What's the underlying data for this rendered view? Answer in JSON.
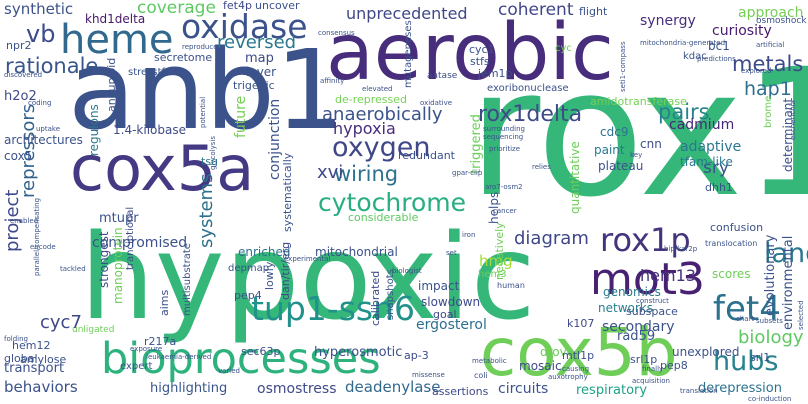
{
  "cloud": {
    "background": "#ffffff",
    "words": [
      {
        "text": "hypoxic",
        "color": "#35b779"
      },
      {
        "text": "rox1",
        "color": "#35b779"
      },
      {
        "text": "anb1",
        "color": "#3b528b"
      },
      {
        "text": "aerobic",
        "color": "#472d7b"
      },
      {
        "text": "cox5a",
        "color": "#443983"
      },
      {
        "text": "cox5b",
        "color": "#6ece58"
      },
      {
        "text": "bioprocesses",
        "color": "#2db27d"
      },
      {
        "text": "mot3",
        "color": "#482173"
      },
      {
        "text": "heme",
        "color": "#31688e"
      },
      {
        "text": "oxidase",
        "color": "#3b528b"
      },
      {
        "text": "tup1-ssn6",
        "color": "#21918c"
      },
      {
        "text": "rox1delta",
        "color": "#3e4a89"
      },
      {
        "text": "fet4",
        "color": "#2c728e"
      },
      {
        "text": "rox1p",
        "color": "#46337e"
      },
      {
        "text": "cytochrome",
        "color": "#28ae80"
      },
      {
        "text": "oxygen",
        "color": "#3f4788"
      },
      {
        "text": "landscape",
        "color": "#2a788e"
      },
      {
        "text": "hubs",
        "color": "#26828e"
      },
      {
        "text": "biology",
        "color": "#5ec962"
      },
      {
        "text": "anaerobically",
        "color": "#3b528b"
      },
      {
        "text": "hypoxia",
        "color": "#472d7b"
      },
      {
        "text": "wiring",
        "color": "#2c728e"
      },
      {
        "text": "pairs",
        "color": "#26828e"
      },
      {
        "text": "metals",
        "color": "#3e4a89"
      },
      {
        "text": "hap1",
        "color": "#2e6e8e"
      },
      {
        "text": "coverage",
        "color": "#5ec962"
      },
      {
        "text": "rationale",
        "color": "#39568c"
      },
      {
        "text": "reversed",
        "color": "#2a788e"
      },
      {
        "text": "vb",
        "color": "#3e4a89"
      },
      {
        "text": "khd1delta",
        "color": "#481769"
      },
      {
        "text": "synthetic",
        "color": "#3b528b"
      },
      {
        "text": "unprecedented",
        "color": "#3f4788"
      },
      {
        "text": "coherent",
        "color": "#404688"
      },
      {
        "text": "synergy",
        "color": "#472d7b"
      },
      {
        "text": "curiosity",
        "color": "#481a6c"
      },
      {
        "text": "approach",
        "color": "#75d054"
      },
      {
        "text": "project",
        "color": "#3e4a89"
      },
      {
        "text": "repressors",
        "color": "#33638d"
      },
      {
        "text": "systems",
        "color": "#2c728e"
      },
      {
        "text": "diagram",
        "color": "#3f4788"
      },
      {
        "text": "hmg",
        "color": "#a5db36"
      },
      {
        "text": "hem13",
        "color": "#46337e"
      },
      {
        "text": "sry",
        "color": "#3b528b"
      },
      {
        "text": "adaptive",
        "color": "#2a788e"
      },
      {
        "text": "cadmium",
        "color": "#482677"
      },
      {
        "text": "cyc7",
        "color": "#3f4788"
      },
      {
        "text": "ergosterol",
        "color": "#2d708e"
      },
      {
        "text": "compromised",
        "color": "#3b528b"
      },
      {
        "text": "enriched",
        "color": "#2d708e"
      },
      {
        "text": "secondary",
        "color": "#3b528b"
      },
      {
        "text": "circuits",
        "color": "#3b528b"
      },
      {
        "text": "respiratory",
        "color": "#1fa188"
      },
      {
        "text": "derepression",
        "color": "#2c728e"
      },
      {
        "text": "behaviors",
        "color": "#3b528b"
      },
      {
        "text": "highlighting",
        "color": "#39568c"
      },
      {
        "text": "osmostress",
        "color": "#3e4a89"
      },
      {
        "text": "deadenylase",
        "color": "#31688e"
      },
      {
        "text": "assertions",
        "color": "#3e4a89"
      },
      {
        "text": "transport",
        "color": "#3b528b"
      },
      {
        "text": "mitochondrial",
        "color": "#3b528b"
      },
      {
        "text": "networks",
        "color": "#287c8e"
      },
      {
        "text": "genomics",
        "color": "#2a788e"
      },
      {
        "text": "hyperosmotic",
        "color": "#3b528b"
      },
      {
        "text": "mosaic",
        "color": "#3e4a89"
      },
      {
        "text": "drove",
        "color": "#6ece58"
      },
      {
        "text": "unexplored",
        "color": "#3b528b"
      },
      {
        "text": "rad59",
        "color": "#3b528b"
      },
      {
        "text": "scores",
        "color": "#6ece58"
      },
      {
        "text": "evolutionary",
        "color": "#3b528b"
      },
      {
        "text": "environmental",
        "color": "#3b528b"
      },
      {
        "text": "determinant",
        "color": "#3b528b"
      },
      {
        "text": "tfam-like",
        "color": "#2a788e"
      },
      {
        "text": "dhh1",
        "color": "#3b528b"
      },
      {
        "text": "cnn",
        "color": "#3b528b"
      },
      {
        "text": "cdc9",
        "color": "#2c728e"
      },
      {
        "text": "paint",
        "color": "#2a788e"
      },
      {
        "text": "plateau",
        "color": "#3b528b"
      },
      {
        "text": "impact",
        "color": "#3b528b"
      },
      {
        "text": "slowdown",
        "color": "#3e4a89"
      },
      {
        "text": "goal",
        "color": "#3e4a89"
      },
      {
        "text": "considerable",
        "color": "#5ec962"
      },
      {
        "text": "redundant",
        "color": "#3b528b"
      },
      {
        "text": "amidotransferase",
        "color": "#75d054"
      },
      {
        "text": "de-repressed",
        "color": "#75d054"
      },
      {
        "text": "exoribonuclease",
        "color": "#3b528b"
      },
      {
        "text": "future",
        "color": "#75d054"
      },
      {
        "text": "1.4-kilobase",
        "color": "#3e4a89"
      },
      {
        "text": "regulons",
        "color": "#2a788e"
      },
      {
        "text": "architectures",
        "color": "#3b528b"
      },
      {
        "text": "h2o2",
        "color": "#3e4a89"
      },
      {
        "text": "cox5",
        "color": "#3b528b"
      },
      {
        "text": "strongest",
        "color": "#3e4a89"
      },
      {
        "text": "manoprotein",
        "color": "#6ece58"
      },
      {
        "text": "tsg",
        "color": "#2a788e"
      },
      {
        "text": "mtupr",
        "color": "#3b528b"
      },
      {
        "text": "xvi",
        "color": "#3e4a89"
      },
      {
        "text": "conjunction",
        "color": "#3b528b"
      },
      {
        "text": "map",
        "color": "#3e4a89"
      },
      {
        "text": "layer",
        "color": "#3b528b"
      },
      {
        "text": "trigenic",
        "color": "#3b528b"
      },
      {
        "text": "aneuploid",
        "color": "#3b528b"
      },
      {
        "text": "stresstfam",
        "color": "#3b528b"
      },
      {
        "text": "secretome",
        "color": "#3b528b"
      },
      {
        "text": "npr2",
        "color": "#3b528b"
      },
      {
        "text": "fet4p",
        "color": "#3e4a89"
      },
      {
        "text": "uncover",
        "color": "#3b528b"
      },
      {
        "text": "flight",
        "color": "#3b528b"
      },
      {
        "text": "mitochondria-generated",
        "color": "#3b528b"
      },
      {
        "text": "osmoshock",
        "color": "#3b528b"
      },
      {
        "text": "cyc1",
        "color": "#3b528b"
      },
      {
        "text": "stfs",
        "color": "#3b528b"
      },
      {
        "text": "jem1p",
        "color": "#3b528b"
      },
      {
        "text": "aatase",
        "color": "#3e4a89"
      },
      {
        "text": "cyc",
        "color": "#6ece58"
      },
      {
        "text": "kdac",
        "color": "#3b528b"
      },
      {
        "text": "bc1",
        "color": "#3b528b"
      },
      {
        "text": "mutageneses",
        "color": "#3b528b"
      },
      {
        "text": "triggered",
        "color": "#6ece58"
      },
      {
        "text": "helps",
        "color": "#3b528b"
      },
      {
        "text": "quantitative",
        "color": "#6ece58"
      },
      {
        "text": "confusion",
        "color": "#3b528b"
      },
      {
        "text": "translocation",
        "color": "#3b528b"
      },
      {
        "text": "lowly",
        "color": "#3b528b"
      },
      {
        "text": "dan/tir/erg",
        "color": "#3e4a89"
      },
      {
        "text": "depmap",
        "color": "#3b528b"
      },
      {
        "text": "pep4",
        "color": "#3b528b"
      },
      {
        "text": "calibrated",
        "color": "#3e4a89"
      },
      {
        "text": "snapshots",
        "color": "#3b528b"
      },
      {
        "text": "hem3",
        "color": "#6ece58"
      },
      {
        "text": "human",
        "color": "#3b528b"
      },
      {
        "text": "k107",
        "color": "#3e4a89"
      },
      {
        "text": "subspace",
        "color": "#3b528b"
      },
      {
        "text": "mtl1p",
        "color": "#3b528b"
      },
      {
        "text": "srl1p",
        "color": "#3b528b"
      },
      {
        "text": "srl1",
        "color": "#3b528b"
      },
      {
        "text": "pep8",
        "color": "#3b528b"
      },
      {
        "text": "ap-3",
        "color": "#3e4a89"
      },
      {
        "text": "sec63p",
        "color": "#3b528b"
      },
      {
        "text": "r217a",
        "color": "#3b528b"
      },
      {
        "text": "hem12",
        "color": "#3b528b"
      },
      {
        "text": "global",
        "color": "#3b528b"
      },
      {
        "text": "amylose",
        "color": "#3b528b"
      },
      {
        "text": "tranciptional",
        "color": "#3e4a89"
      },
      {
        "text": "aims",
        "color": "#3b528b"
      },
      {
        "text": "multisubstrate",
        "color": "#3b528b"
      },
      {
        "text": "leukaemia-derived",
        "color": "#3b528b"
      },
      {
        "text": "expert",
        "color": "#3b528b"
      },
      {
        "text": "unligated",
        "color": "#6ece58"
      },
      {
        "text": "negatively",
        "color": "#6ece58"
      },
      {
        "text": "systematically",
        "color": "#3b528b"
      },
      {
        "text": "metabolic",
        "color": "#3b528b"
      },
      {
        "text": "coli",
        "color": "#3b528b"
      },
      {
        "text": "translation",
        "color": "#3b528b"
      },
      {
        "text": "co-induction",
        "color": "#3b528b"
      },
      {
        "text": "missense",
        "color": "#3b528b"
      },
      {
        "text": "varied",
        "color": "#3b528b"
      },
      {
        "text": "folding",
        "color": "#3b528b"
      },
      {
        "text": "tackled",
        "color": "#3b528b"
      },
      {
        "text": "enabled",
        "color": "#3b528b"
      },
      {
        "text": "encode",
        "color": "#3b528b"
      },
      {
        "text": "parallel/compensating",
        "color": "#3b528b"
      },
      {
        "text": "uptake",
        "color": "#3b528b"
      },
      {
        "text": "discovered",
        "color": "#3b528b"
      },
      {
        "text": "consensus",
        "color": "#3b528b"
      },
      {
        "text": "affinity",
        "color": "#3b528b"
      },
      {
        "text": "elevated",
        "color": "#3b528b"
      },
      {
        "text": "oxidative",
        "color": "#3b528b"
      },
      {
        "text": "surrounding",
        "color": "#3b528b"
      },
      {
        "text": "sequencing",
        "color": "#3b528b"
      },
      {
        "text": "prioritize",
        "color": "#3b528b"
      },
      {
        "text": "gpar-clip",
        "color": "#3b528b"
      },
      {
        "text": "relies",
        "color": "#3b528b"
      },
      {
        "text": "aro7-osm2",
        "color": "#3b528b"
      },
      {
        "text": "cancer",
        "color": "#3b528b"
      },
      {
        "text": "predictions",
        "color": "#3b528b"
      },
      {
        "text": "explored",
        "color": "#3b528b"
      },
      {
        "text": "brome",
        "color": "#6ece58"
      },
      {
        "text": "escherichia",
        "color": "#3b528b"
      },
      {
        "text": "key",
        "color": "#3b528b"
      },
      {
        "text": "bip/kar2p",
        "color": "#3b528b"
      },
      {
        "text": "construct",
        "color": "#3b528b"
      },
      {
        "text": "chart",
        "color": "#3b528b"
      },
      {
        "text": "subsets",
        "color": "#3b528b"
      },
      {
        "text": "selected",
        "color": "#3b528b"
      },
      {
        "text": "acquisition",
        "color": "#3b528b"
      },
      {
        "text": "causing",
        "color": "#3b528b"
      },
      {
        "text": "finally",
        "color": "#3b528b"
      },
      {
        "text": "biologist",
        "color": "#3b528b"
      },
      {
        "text": "experimental",
        "color": "#3b528b"
      },
      {
        "text": "iron",
        "color": "#3b528b"
      },
      {
        "text": "set",
        "color": "#3b528b"
      },
      {
        "text": "artificial",
        "color": "#3b528b"
      },
      {
        "text": "reproduce",
        "color": "#3b528b"
      },
      {
        "text": "potential",
        "color": "#3b528b"
      },
      {
        "text": "glycolysis",
        "color": "#3b528b"
      },
      {
        "text": "seti1-compass",
        "color": "#3b528b"
      },
      {
        "text": "exposure",
        "color": "#3b528b"
      },
      {
        "text": "auxotrophy",
        "color": "#3b528b"
      },
      {
        "text": "coding",
        "color": "#3b528b"
      }
    ]
  }
}
